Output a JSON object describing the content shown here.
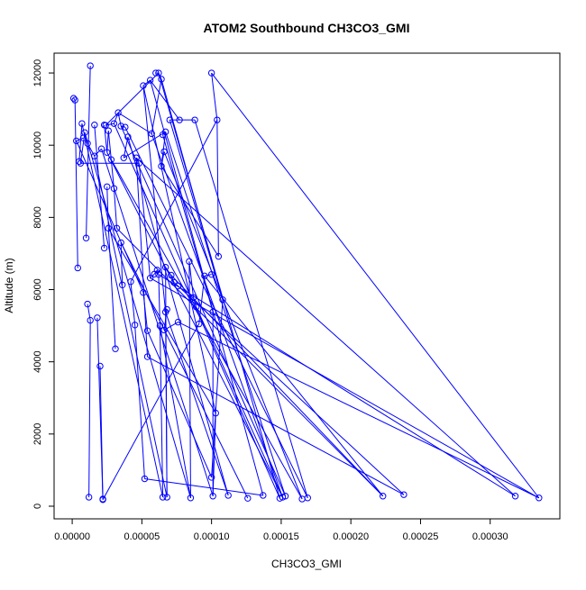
{
  "chart_data": {
    "type": "line",
    "title": "ATOM2 Southbound CH3CO3_GMI",
    "xlabel": "CH3CO3_GMI",
    "ylabel": "Altitude (m)",
    "xlim": [
      -1.3e-05,
      0.00035
    ],
    "ylim": [
      -350,
      12550
    ],
    "xticks": [
      0.0,
      5e-05,
      0.0001,
      0.00015,
      0.0002,
      0.00025,
      0.0003
    ],
    "xtick_labels": [
      "0.00000",
      "0.00005",
      "0.00010",
      "0.00015",
      "0.00020",
      "0.00025",
      "0.00030"
    ],
    "yticks": [
      0,
      2000,
      4000,
      6000,
      8000,
      10000,
      12000
    ],
    "ytick_labels": [
      "0",
      "2000",
      "4000",
      "6000",
      "8000",
      "10000",
      "12000"
    ],
    "grid": false,
    "marker": "open-circle",
    "series": [
      {
        "color": "#0000ff",
        "points": [
          [
            1e-06,
            11300
          ],
          [
            2e-06,
            11250
          ],
          [
            4e-06,
            6600
          ],
          [
            1.1e-05,
            5600
          ],
          [
            1.3e-05,
            5150
          ],
          [
            1.2e-05,
            250
          ],
          [
            1.3e-05,
            12200
          ],
          [
            1e-05,
            7430
          ],
          [
            5e-06,
            9550
          ],
          [
            7e-06,
            10600
          ],
          [
            8e-06,
            10200
          ],
          [
            3e-06,
            10120
          ],
          [
            6e-06,
            9500
          ],
          [
            9e-06,
            10350
          ],
          [
            1.1e-05,
            10050
          ],
          [
            1.6e-05,
            9700
          ],
          [
            2.1e-05,
            9900
          ],
          [
            2.2e-05,
            200
          ],
          [
            1.8e-05,
            5220
          ],
          [
            2e-05,
            3880
          ],
          [
            2.2e-05,
            180
          ],
          [
            2.3e-05,
            7150
          ],
          [
            1.6e-05,
            10560
          ],
          [
            2.3e-05,
            10560
          ],
          [
            2.5e-05,
            9800
          ],
          [
            2.6e-05,
            10400
          ],
          [
            2.8e-05,
            9600
          ],
          [
            3e-05,
            8800
          ],
          [
            3.2e-05,
            7700
          ],
          [
            2.5e-05,
            8850
          ],
          [
            2.6e-05,
            7700
          ],
          [
            3.1e-05,
            4360
          ],
          [
            2.4e-05,
            10550
          ],
          [
            3e-05,
            10600
          ],
          [
            3.3e-05,
            10900
          ],
          [
            3.5e-05,
            10530
          ],
          [
            3.8e-05,
            10500
          ],
          [
            3.7e-05,
            9650
          ],
          [
            4e-05,
            10230
          ],
          [
            3.6e-05,
            6130
          ],
          [
            3.5e-05,
            7300
          ],
          [
            4.2e-05,
            6220
          ],
          [
            4.5e-05,
            5020
          ],
          [
            5.2e-05,
            760
          ],
          [
            5.1e-05,
            5920
          ],
          [
            5.4e-05,
            4860
          ],
          [
            5.4e-05,
            4140
          ],
          [
            4.6e-05,
            9650
          ],
          [
            4.8e-05,
            9500
          ],
          [
            5.6e-05,
            6320
          ],
          [
            5.9e-05,
            6430
          ],
          [
            6.1e-05,
            6540
          ],
          [
            6.2e-05,
            6420
          ],
          [
            6.3e-05,
            5000
          ],
          [
            6.5e-05,
            250
          ],
          [
            6.8e-05,
            250
          ],
          [
            6.7e-05,
            5380
          ],
          [
            5.1e-05,
            11650
          ],
          [
            5.6e-05,
            11800
          ],
          [
            6e-05,
            12000
          ],
          [
            6.2e-05,
            12000
          ],
          [
            6.4e-05,
            11830
          ],
          [
            5.7e-05,
            10320
          ],
          [
            6.5e-05,
            10290
          ],
          [
            6.7e-05,
            10370
          ],
          [
            6.4e-05,
            9420
          ],
          [
            6.6e-05,
            9820
          ],
          [
            7e-05,
            10700
          ],
          [
            7.7e-05,
            10700
          ],
          [
            8.8e-05,
            10700
          ],
          [
            6.7e-05,
            6620
          ],
          [
            7.1e-05,
            6400
          ],
          [
            7.3e-05,
            6200
          ],
          [
            7.6e-05,
            6100
          ],
          [
            6.8e-05,
            5450
          ],
          [
            6.6e-05,
            4880
          ],
          [
            7.6e-05,
            5100
          ],
          [
            8.5e-05,
            230
          ],
          [
            8.4e-05,
            6780
          ],
          [
            8.7e-05,
            5780
          ],
          [
            8.9e-05,
            5520
          ],
          [
            9.1e-05,
            5050
          ],
          [
            9.5e-05,
            6380
          ],
          [
            0.0001,
            6420
          ],
          [
            0.000101,
            5380
          ],
          [
            0.000101,
            280
          ],
          [
            0.000103,
            2580
          ],
          [
            0.0001,
            12000
          ],
          [
            0.000104,
            10700
          ],
          [
            0.000105,
            6920
          ],
          [
            0.000108,
            5720
          ],
          [
            0.0001,
            800
          ],
          [
            0.000112,
            300
          ],
          [
            0.000126,
            220
          ],
          [
            0.000137,
            300
          ],
          [
            0.000149,
            220
          ],
          [
            0.000151,
            250
          ],
          [
            0.000153,
            280
          ],
          [
            0.000165,
            200
          ],
          [
            0.000169,
            230
          ],
          [
            0.000223,
            280
          ],
          [
            0.000238,
            320
          ],
          [
            0.000318,
            280
          ],
          [
            0.000335,
            230
          ]
        ],
        "segments": [
          [
            0,
            1
          ],
          [
            1,
            2
          ],
          [
            3,
            4
          ],
          [
            4,
            5
          ],
          [
            6,
            7
          ],
          [
            8,
            9
          ],
          [
            10,
            11
          ],
          [
            12,
            13
          ],
          [
            13,
            14
          ],
          [
            14,
            15
          ],
          [
            15,
            16
          ],
          [
            17,
            18
          ],
          [
            19,
            20
          ],
          [
            21,
            22
          ],
          [
            23,
            24
          ],
          [
            24,
            25
          ],
          [
            25,
            26
          ],
          [
            26,
            27
          ],
          [
            27,
            28
          ],
          [
            29,
            30
          ],
          [
            30,
            31
          ],
          [
            32,
            33
          ],
          [
            33,
            34
          ],
          [
            34,
            35
          ],
          [
            35,
            36
          ],
          [
            37,
            38
          ],
          [
            39,
            40
          ],
          [
            41,
            42
          ],
          [
            42,
            43
          ],
          [
            44,
            45
          ],
          [
            46,
            47
          ],
          [
            47,
            48
          ],
          [
            48,
            49
          ],
          [
            49,
            50
          ],
          [
            50,
            51
          ],
          [
            51,
            52
          ],
          [
            52,
            53
          ],
          [
            53,
            54
          ],
          [
            55,
            56
          ],
          [
            56,
            57
          ],
          [
            57,
            58
          ],
          [
            59,
            60
          ],
          [
            60,
            61
          ],
          [
            61,
            62
          ],
          [
            63,
            64
          ],
          [
            64,
            65
          ],
          [
            65,
            66
          ],
          [
            67,
            68
          ],
          [
            68,
            69
          ],
          [
            70,
            71
          ],
          [
            71,
            72
          ],
          [
            72,
            73
          ],
          [
            74,
            75
          ],
          [
            75,
            76
          ],
          [
            77,
            78
          ],
          [
            78,
            79
          ],
          [
            79,
            80
          ],
          [
            81,
            82
          ],
          [
            82,
            83
          ],
          [
            84,
            85
          ],
          [
            85,
            86
          ],
          [
            87,
            88
          ],
          [
            88,
            89
          ],
          [
            90,
            91
          ],
          [
            24,
            96
          ],
          [
            26,
            98
          ],
          [
            28,
            100
          ],
          [
            33,
            95
          ],
          [
            35,
            97
          ],
          [
            36,
            99
          ],
          [
            38,
            92
          ],
          [
            40,
            93
          ],
          [
            43,
            94
          ],
          [
            46,
            101
          ],
          [
            47,
            102
          ],
          [
            49,
            103
          ],
          [
            52,
            102
          ],
          [
            56,
            92
          ],
          [
            58,
            94
          ],
          [
            60,
            95
          ],
          [
            62,
            96
          ],
          [
            64,
            97
          ],
          [
            66,
            98
          ],
          [
            69,
            99
          ],
          [
            71,
            100
          ],
          [
            73,
            101
          ],
          [
            76,
            103
          ],
          [
            80,
            96
          ],
          [
            82,
            100
          ],
          [
            87,
            103
          ],
          [
            61,
            90
          ],
          [
            63,
            84
          ],
          [
            67,
            90
          ],
          [
            20,
            81
          ],
          [
            16,
            85
          ],
          [
            13,
            77
          ],
          [
            30,
            86
          ],
          [
            41,
            88
          ],
          [
            45,
            91
          ],
          [
            53,
            77
          ],
          [
            57,
            86
          ],
          [
            65,
            89
          ],
          [
            32,
            60
          ],
          [
            34,
            62
          ],
          [
            37,
            64
          ],
          [
            12,
            48
          ],
          [
            9,
            54
          ],
          [
            11,
            44
          ],
          [
            68,
            58
          ],
          [
            70,
            55
          ],
          [
            15,
            55
          ]
        ]
      }
    ]
  }
}
